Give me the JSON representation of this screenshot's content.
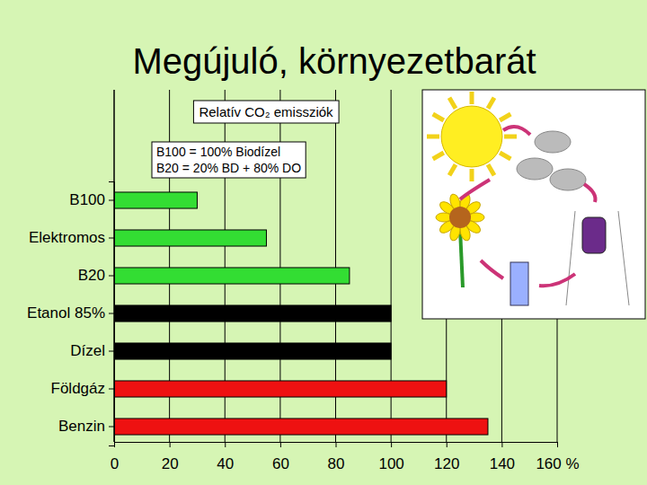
{
  "chart_data": {
    "type": "bar",
    "orientation": "horizontal",
    "title": "Megújuló, környezetbarát",
    "subtitle": "Relatív CO₂ emissziók",
    "annotations": [
      "B100 = 100% Biodízel",
      "B20 = 20% BD + 80% DO"
    ],
    "categories": [
      "B100",
      "Elektromos",
      "B20",
      "Etanol 85%",
      "Dízel",
      "Földgáz",
      "Benzin"
    ],
    "values": [
      30,
      55,
      85,
      100,
      100,
      120,
      135
    ],
    "colors": [
      "#33dd33",
      "#33dd33",
      "#33dd33",
      "#000000",
      "#000000",
      "#ee1111",
      "#ee1111"
    ],
    "xlim": [
      0,
      160
    ],
    "xticks": [
      0,
      20,
      40,
      60,
      80,
      100,
      120,
      140,
      {
        "value": 160,
        "label": "160 %"
      }
    ],
    "grid": true
  }
}
